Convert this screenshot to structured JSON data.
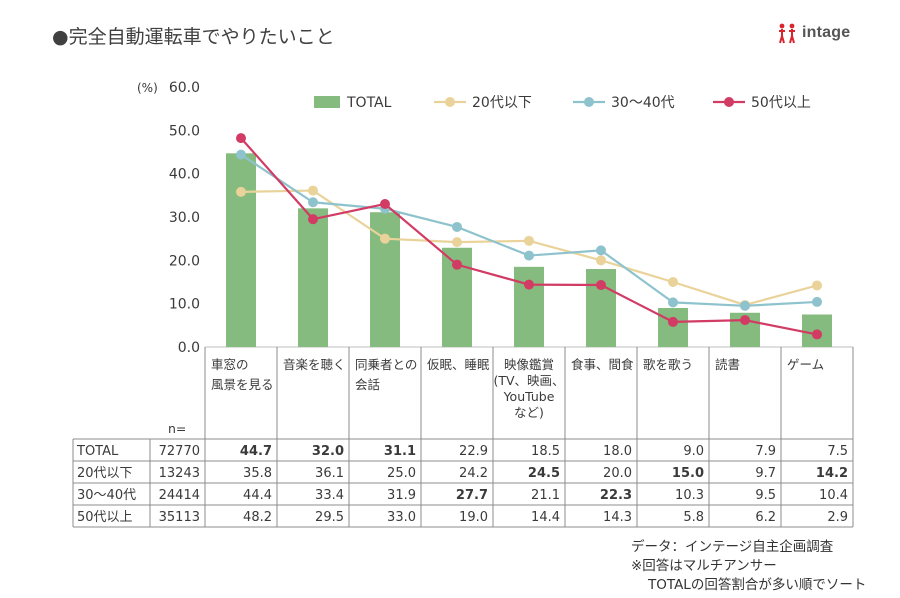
{
  "title": "●完全自動運転車でやりたいこと",
  "brand": {
    "name": "intage",
    "icon": "intage-logo-icon"
  },
  "colors": {
    "total": "#85bb7e",
    "age20": "#ead39a",
    "age30_40": "#8ec3cd",
    "age50": "#d13b64",
    "grid": "#bfbfbf",
    "text": "#3a3a3a"
  },
  "chart_data": {
    "type": "bar+line",
    "ylabel": "(%)",
    "ylim": [
      0,
      60
    ],
    "yticks": [
      "0.0",
      "10.0",
      "20.0",
      "30.0",
      "40.0",
      "50.0",
      "60.0"
    ],
    "legend_position": "top-right",
    "categories": [
      [
        "車窓の",
        "風景を見る"
      ],
      [
        "音楽を聴く"
      ],
      [
        "同乗者との",
        "会話"
      ],
      [
        "仮眠、睡眠"
      ],
      [
        "映像鑑賞",
        "(TV、映画、",
        "YouTube",
        "など)"
      ],
      [
        "食事、間食"
      ],
      [
        "歌を歌う"
      ],
      [
        "読書"
      ],
      [
        "ゲーム"
      ]
    ],
    "n_label": "n=",
    "series": [
      {
        "name": "TOTAL",
        "kind": "bar",
        "n": "72770",
        "values": [
          44.7,
          32.0,
          31.1,
          22.9,
          18.5,
          18.0,
          9.0,
          7.9,
          7.5
        ],
        "labels": [
          "44.7",
          "32.0",
          "31.1",
          "22.9",
          "18.5",
          "18.0",
          "9.0",
          "7.9",
          "7.5"
        ],
        "bold": [
          true,
          true,
          true,
          false,
          false,
          false,
          false,
          false,
          false
        ]
      },
      {
        "name": "20代以下",
        "kind": "line",
        "n": "13243",
        "values": [
          35.8,
          36.1,
          25.0,
          24.2,
          24.5,
          20.0,
          15.0,
          9.7,
          14.2
        ],
        "labels": [
          "35.8",
          "36.1",
          "25.0",
          "24.2",
          "24.5",
          "20.0",
          "15.0",
          "9.7",
          "14.2"
        ],
        "bold": [
          false,
          false,
          false,
          false,
          true,
          false,
          true,
          false,
          true
        ]
      },
      {
        "name": "30～40代",
        "kind": "line",
        "n": "24414",
        "values": [
          44.4,
          33.4,
          31.9,
          27.7,
          21.1,
          22.3,
          10.3,
          9.5,
          10.4
        ],
        "labels": [
          "44.4",
          "33.4",
          "31.9",
          "27.7",
          "21.1",
          "22.3",
          "10.3",
          "9.5",
          "10.4"
        ],
        "bold": [
          false,
          false,
          false,
          true,
          false,
          true,
          false,
          false,
          false
        ]
      },
      {
        "name": "50代以上",
        "kind": "line",
        "n": "35113",
        "values": [
          48.2,
          29.5,
          33.0,
          19.0,
          14.4,
          14.3,
          5.8,
          6.2,
          2.9
        ],
        "labels": [
          "48.2",
          "29.5",
          "33.0",
          "19.0",
          "14.4",
          "14.3",
          "5.8",
          "6.2",
          "2.9"
        ],
        "bold": [
          false,
          false,
          false,
          false,
          false,
          false,
          false,
          false,
          false
        ]
      }
    ]
  },
  "notes": [
    "データ：インテージ自主企画調査",
    "※回答はマルチアンサー",
    "TOTALの回答割合が多い順でソート"
  ]
}
